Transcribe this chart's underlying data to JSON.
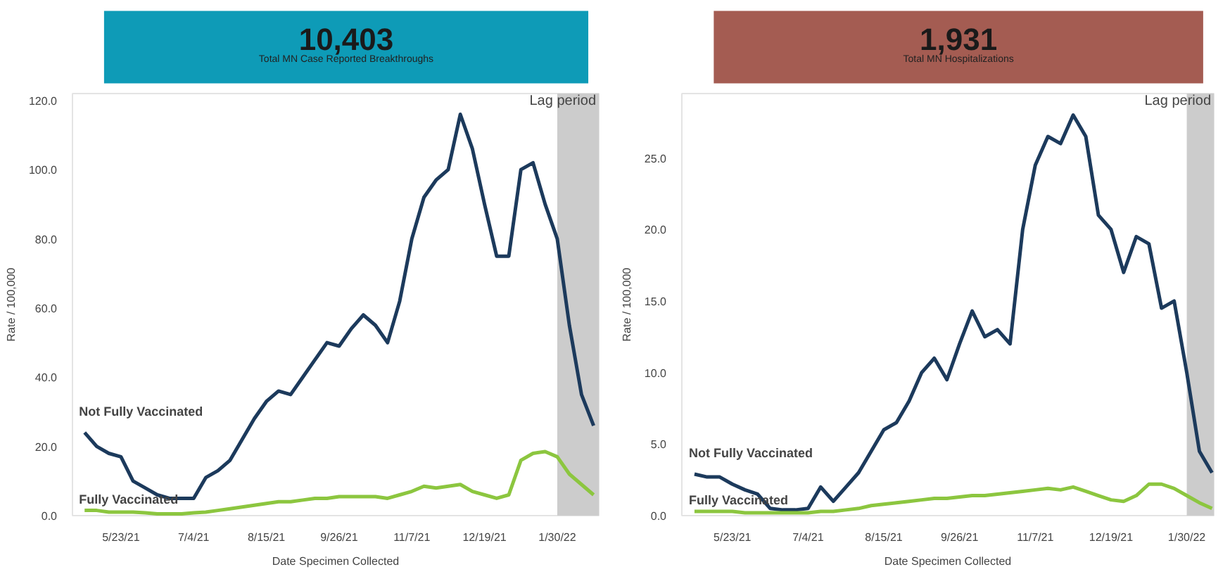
{
  "chart_data": [
    {
      "type": "line",
      "title": "10,403",
      "subtitle": "Total MN Case Reported Breakthroughs",
      "xlabel": "Date Specimen Collected",
      "ylabel": "Rate / 100,000",
      "grid": false,
      "x": [
        "2021-05-02",
        "2021-05-09",
        "2021-05-16",
        "2021-05-23",
        "2021-05-30",
        "2021-06-06",
        "2021-06-13",
        "2021-06-20",
        "2021-06-27",
        "2021-07-04",
        "2021-07-11",
        "2021-07-18",
        "2021-07-25",
        "2021-08-01",
        "2021-08-08",
        "2021-08-15",
        "2021-08-22",
        "2021-08-29",
        "2021-09-05",
        "2021-09-12",
        "2021-09-19",
        "2021-09-26",
        "2021-10-03",
        "2021-10-10",
        "2021-10-17",
        "2021-10-24",
        "2021-10-31",
        "2021-11-07",
        "2021-11-14",
        "2021-11-21",
        "2021-11-28",
        "2021-12-05",
        "2021-12-12",
        "2021-12-19",
        "2021-12-26",
        "2022-01-02",
        "2022-01-09",
        "2022-01-16",
        "2022-01-23",
        "2022-01-30",
        "2022-02-06",
        "2022-02-13",
        "2022-02-20"
      ],
      "xlim": [
        "2021-04-25",
        "2022-02-23"
      ],
      "xticks": [
        {
          "value": "2021-05-23",
          "label": "5/23/21"
        },
        {
          "value": "2021-07-04",
          "label": "7/4/21"
        },
        {
          "value": "2021-08-15",
          "label": "8/15/21"
        },
        {
          "value": "2021-09-26",
          "label": "9/26/21"
        },
        {
          "value": "2021-11-07",
          "label": "11/7/21"
        },
        {
          "value": "2021-12-19",
          "label": "12/19/21"
        },
        {
          "value": "2022-01-30",
          "label": "1/30/22"
        }
      ],
      "ylim": [
        0,
        122
      ],
      "yticks": [
        {
          "value": 0,
          "label": "0.0"
        },
        {
          "value": 20,
          "label": "20.0"
        },
        {
          "value": 40,
          "label": "40.0"
        },
        {
          "value": 60,
          "label": "60.0"
        },
        {
          "value": 80,
          "label": "80.0"
        },
        {
          "value": 100,
          "label": "100.0"
        },
        {
          "value": 120,
          "label": "120.0"
        }
      ],
      "bands": [
        {
          "axis": "x",
          "from": "2022-01-30",
          "to": "2022-02-23",
          "label": "Lag period",
          "color": "#cccccc"
        }
      ],
      "series": [
        {
          "name": "Not Fully Vaccinated",
          "color": "#1c3a5c",
          "values": [
            24,
            20,
            18,
            17,
            10,
            8,
            6,
            5,
            5,
            5,
            11,
            13,
            16,
            22,
            28,
            33,
            36,
            35,
            40,
            45,
            50,
            49,
            54,
            58,
            55,
            50,
            62,
            80,
            92,
            97,
            100,
            116,
            106,
            90,
            75,
            75,
            100,
            102,
            90,
            80,
            55,
            35,
            26
          ]
        },
        {
          "name": "Fully Vaccinated",
          "color": "#8cc63f",
          "values": [
            1.5,
            1.5,
            1,
            1,
            1,
            0.8,
            0.5,
            0.5,
            0.5,
            0.8,
            1,
            1.5,
            2,
            2.5,
            3,
            3.5,
            4,
            4,
            4.5,
            5,
            5,
            5.5,
            5.5,
            5.5,
            5.5,
            5,
            6,
            7,
            8.5,
            8,
            8.5,
            9,
            7,
            6,
            5,
            6,
            16,
            18,
            18.5,
            17,
            12,
            9,
            6
          ]
        }
      ]
    },
    {
      "type": "line",
      "title": "1,931",
      "subtitle": "Total MN Hospitalizations",
      "xlabel": "Date Specimen Collected",
      "ylabel": "Rate / 100,000",
      "grid": false,
      "x": [
        "2021-05-02",
        "2021-05-09",
        "2021-05-16",
        "2021-05-23",
        "2021-05-30",
        "2021-06-06",
        "2021-06-13",
        "2021-06-20",
        "2021-06-27",
        "2021-07-04",
        "2021-07-11",
        "2021-07-18",
        "2021-07-25",
        "2021-08-01",
        "2021-08-08",
        "2021-08-15",
        "2021-08-22",
        "2021-08-29",
        "2021-09-05",
        "2021-09-12",
        "2021-09-19",
        "2021-09-26",
        "2021-10-03",
        "2021-10-10",
        "2021-10-17",
        "2021-10-24",
        "2021-10-31",
        "2021-11-07",
        "2021-11-14",
        "2021-11-21",
        "2021-11-28",
        "2021-12-05",
        "2021-12-12",
        "2021-12-19",
        "2021-12-26",
        "2022-01-02",
        "2022-01-09",
        "2022-01-16",
        "2022-01-23",
        "2022-01-30",
        "2022-02-06",
        "2022-02-13"
      ],
      "xlim": [
        "2021-04-25",
        "2022-02-14"
      ],
      "xticks": [
        {
          "value": "2021-05-23",
          "label": "5/23/21"
        },
        {
          "value": "2021-07-04",
          "label": "7/4/21"
        },
        {
          "value": "2021-08-15",
          "label": "8/15/21"
        },
        {
          "value": "2021-09-26",
          "label": "9/26/21"
        },
        {
          "value": "2021-11-07",
          "label": "11/7/21"
        },
        {
          "value": "2021-12-19",
          "label": "12/19/21"
        },
        {
          "value": "2022-01-30",
          "label": "1/30/22"
        }
      ],
      "ylim": [
        0,
        29.5
      ],
      "yticks": [
        {
          "value": 0,
          "label": "0.0"
        },
        {
          "value": 5,
          "label": "5.0"
        },
        {
          "value": 10,
          "label": "10.0"
        },
        {
          "value": 15,
          "label": "15.0"
        },
        {
          "value": 20,
          "label": "20.0"
        },
        {
          "value": 25,
          "label": "25.0"
        }
      ],
      "bands": [
        {
          "axis": "x",
          "from": "2022-01-30",
          "to": "2022-02-14",
          "label": "Lag period",
          "color": "#cccccc"
        }
      ],
      "series": [
        {
          "name": "Not Fully Vaccinated",
          "color": "#1c3a5c",
          "values": [
            2.9,
            2.7,
            2.7,
            2.2,
            1.8,
            1.5,
            0.5,
            0.4,
            0.4,
            0.5,
            2.0,
            1.0,
            2.0,
            3.0,
            4.5,
            6.0,
            6.5,
            8.0,
            10,
            11,
            9.5,
            12,
            14.3,
            12.5,
            13,
            12,
            20,
            24.5,
            26.5,
            26,
            28,
            26.5,
            21,
            20,
            17,
            19.5,
            19,
            14.5,
            15,
            10,
            4.5,
            3
          ]
        },
        {
          "name": "Fully Vaccinated",
          "color": "#8cc63f",
          "values": [
            0.3,
            0.3,
            0.3,
            0.3,
            0.2,
            0.2,
            0.2,
            0.2,
            0.2,
            0.2,
            0.3,
            0.3,
            0.4,
            0.5,
            0.7,
            0.8,
            0.9,
            1.0,
            1.1,
            1.2,
            1.2,
            1.3,
            1.4,
            1.4,
            1.5,
            1.6,
            1.7,
            1.8,
            1.9,
            1.8,
            2.0,
            1.7,
            1.4,
            1.1,
            1.0,
            1.4,
            2.2,
            2.2,
            1.9,
            1.4,
            0.9,
            0.5
          ]
        }
      ]
    }
  ]
}
